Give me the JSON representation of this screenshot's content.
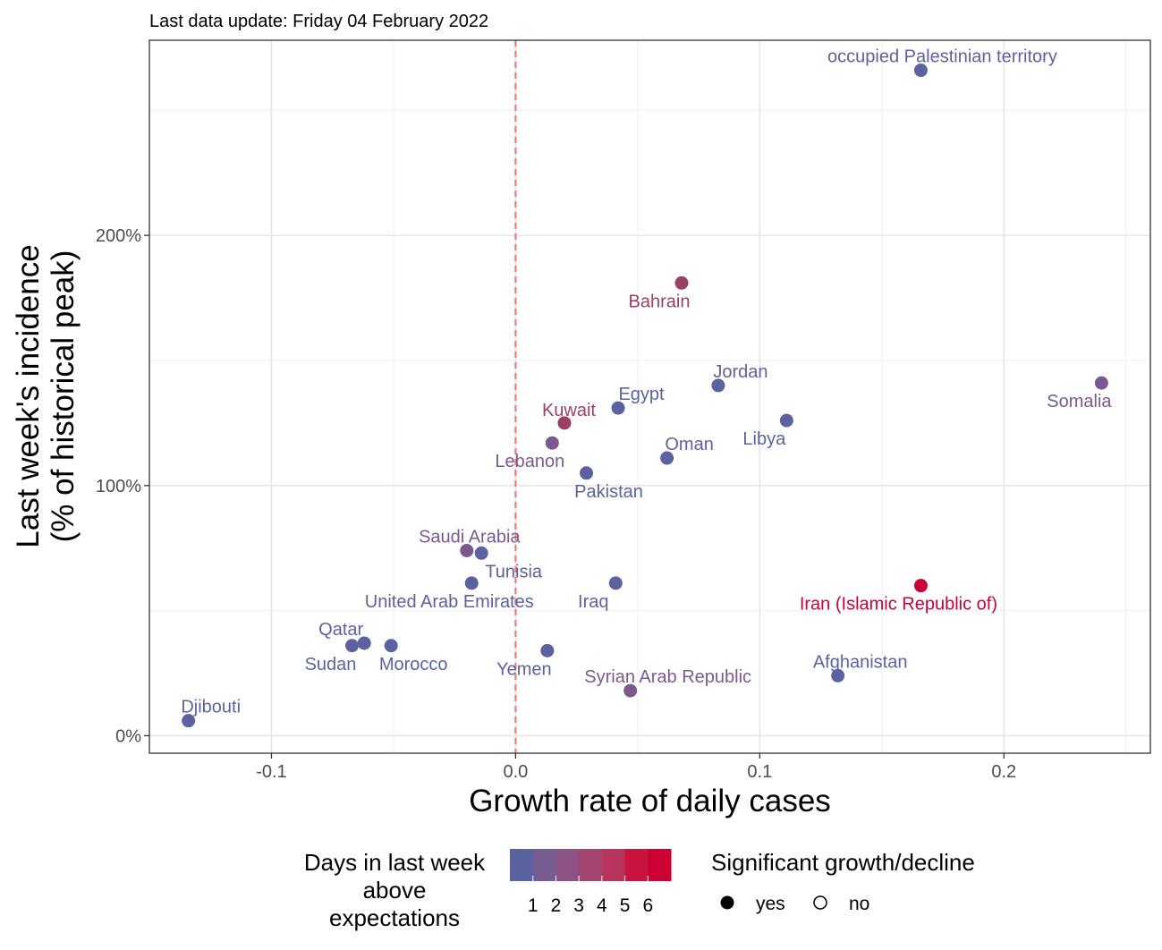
{
  "chart_data": {
    "type": "scatter",
    "subtitle": "Last data update: Friday 04 February 2022",
    "xlabel": "Growth rate of daily cases",
    "ylabel_line1": "Last week's incidence",
    "ylabel_line2": "(% of historical peak)",
    "xlim": [
      -0.15,
      0.26
    ],
    "ylim": [
      -0.07,
      2.78
    ],
    "x_ticks": [
      {
        "value": -0.1,
        "label": "-0.1"
      },
      {
        "value": 0.0,
        "label": "0.0"
      },
      {
        "value": 0.1,
        "label": "0.1"
      },
      {
        "value": 0.2,
        "label": "0.2"
      }
    ],
    "y_ticks": [
      {
        "value": 0.0,
        "label": "0%"
      },
      {
        "value": 1.0,
        "label": "100%"
      },
      {
        "value": 2.0,
        "label": "200%"
      }
    ],
    "reference_line_x": 0.0,
    "grid": true,
    "points": [
      {
        "label": "occupied Palestinian territory",
        "x": 0.166,
        "y": 2.66,
        "days": 1
      },
      {
        "label": "Bahrain",
        "x": 0.068,
        "y": 1.81,
        "days": 4
      },
      {
        "label": "Somalia",
        "x": 0.24,
        "y": 1.41,
        "days": 2
      },
      {
        "label": "Jordan",
        "x": 0.083,
        "y": 1.4,
        "days": 1
      },
      {
        "label": "Egypt",
        "x": 0.042,
        "y": 1.31,
        "days": 1
      },
      {
        "label": "Libya",
        "x": 0.111,
        "y": 1.26,
        "days": 1
      },
      {
        "label": "Kuwait",
        "x": 0.02,
        "y": 1.25,
        "days": 4
      },
      {
        "label": "Lebanon",
        "x": 0.015,
        "y": 1.17,
        "days": 2
      },
      {
        "label": "Oman",
        "x": 0.062,
        "y": 1.11,
        "days": 1
      },
      {
        "label": "Pakistan",
        "x": 0.029,
        "y": 1.05,
        "days": 1
      },
      {
        "label": "Saudi Arabia",
        "x": -0.02,
        "y": 0.74,
        "days": 2
      },
      {
        "label": "Tunisia",
        "x": -0.014,
        "y": 0.73,
        "days": 1
      },
      {
        "label": "United Arab Emirates",
        "x": -0.018,
        "y": 0.61,
        "days": 1
      },
      {
        "label": "Iraq",
        "x": 0.041,
        "y": 0.61,
        "days": 1
      },
      {
        "label": "Iran (Islamic Republic of)",
        "x": 0.166,
        "y": 0.6,
        "days": 6
      },
      {
        "label": "Qatar",
        "x": -0.062,
        "y": 0.37,
        "days": 1
      },
      {
        "label": "Sudan",
        "x": -0.067,
        "y": 0.36,
        "days": 1
      },
      {
        "label": "Morocco",
        "x": -0.051,
        "y": 0.36,
        "days": 1
      },
      {
        "label": "Yemen",
        "x": 0.013,
        "y": 0.34,
        "days": 1
      },
      {
        "label": "Afghanistan",
        "x": 0.132,
        "y": 0.24,
        "days": 1
      },
      {
        "label": "Syrian Arab Republic",
        "x": 0.047,
        "y": 0.18,
        "days": 2
      },
      {
        "label": "Djibouti",
        "x": -0.134,
        "y": 0.06,
        "days": 1
      }
    ],
    "color_legend": {
      "title": "Days in last week above expectations",
      "title_lines": [
        "Days in last week",
        "above",
        "expectations"
      ],
      "labels": [
        "1",
        "2",
        "3",
        "4",
        "5",
        "6"
      ],
      "colors": [
        "#5b62a0",
        "#755c91",
        "#8d5382",
        "#a44571",
        "#b8345c",
        "#c8143f",
        "#cc0033"
      ]
    },
    "shape_legend": {
      "title": "Significant growth/decline",
      "items": [
        {
          "label": "yes",
          "shape": "filled-circle"
        },
        {
          "label": "no",
          "shape": "open-circle"
        }
      ]
    },
    "day_colors": {
      "1": "#5b62a0",
      "2": "#7a5a8e",
      "4": "#9b3f64",
      "6": "#c9003a"
    }
  }
}
